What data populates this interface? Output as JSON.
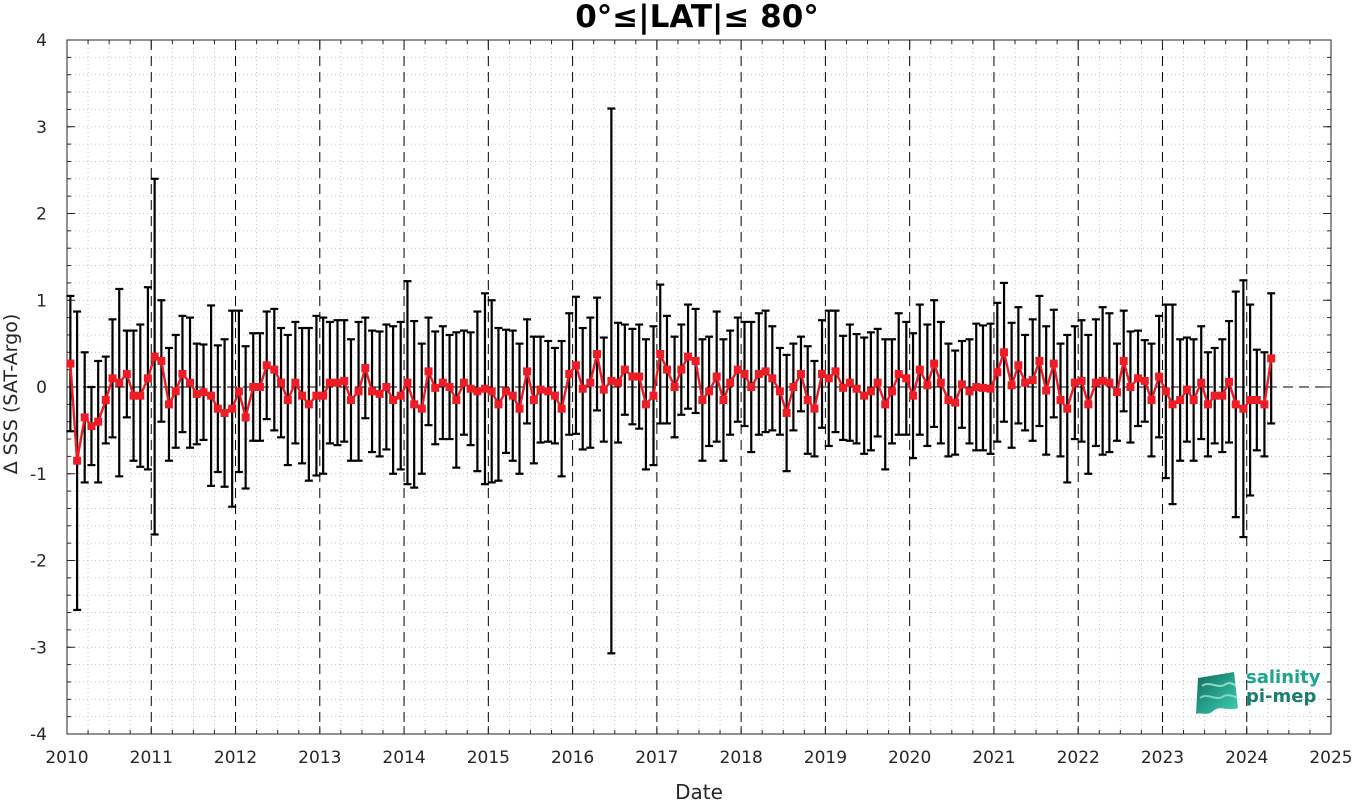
{
  "chart_data": {
    "type": "line",
    "title": "0°≤|LAT|≤ 80°",
    "xlabel": "Date",
    "ylabel": "Δ SSS (SAT-Argo)",
    "xlim": [
      2010,
      2025
    ],
    "ylim": [
      -4,
      4
    ],
    "x_ticks": [
      "2010",
      "2011",
      "2012",
      "2013",
      "2014",
      "2015",
      "2016",
      "2017",
      "2018",
      "2019",
      "2020",
      "2021",
      "2022",
      "2023",
      "2024",
      "2025"
    ],
    "y_ticks": [
      "4",
      "3",
      "2",
      "1",
      "0",
      "-1",
      "-2",
      "-3",
      "-4"
    ],
    "grid": "dotted, with dashed vertical lines at each year",
    "reference_line": 0,
    "series": [
      {
        "color": "#ee1c25",
        "marker": "square",
        "errorbar_color": "#000000",
        "x": [
          2010.04,
          2010.12,
          2010.21,
          2010.29,
          2010.37,
          2010.46,
          2010.54,
          2010.62,
          2010.71,
          2010.79,
          2010.87,
          2010.96,
          2011.04,
          2011.12,
          2011.21,
          2011.29,
          2011.37,
          2011.46,
          2011.54,
          2011.62,
          2011.71,
          2011.79,
          2011.87,
          2011.96,
          2012.04,
          2012.12,
          2012.21,
          2012.29,
          2012.37,
          2012.46,
          2012.54,
          2012.62,
          2012.71,
          2012.79,
          2012.87,
          2012.96,
          2013.04,
          2013.12,
          2013.21,
          2013.29,
          2013.37,
          2013.46,
          2013.54,
          2013.62,
          2013.71,
          2013.79,
          2013.87,
          2013.96,
          2014.04,
          2014.12,
          2014.21,
          2014.29,
          2014.37,
          2014.46,
          2014.54,
          2014.62,
          2014.71,
          2014.79,
          2014.87,
          2014.96,
          2015.04,
          2015.12,
          2015.21,
          2015.29,
          2015.37,
          2015.46,
          2015.54,
          2015.62,
          2015.71,
          2015.79,
          2015.87,
          2015.96,
          2016.04,
          2016.12,
          2016.21,
          2016.29,
          2016.37,
          2016.46,
          2016.54,
          2016.62,
          2016.71,
          2016.79,
          2016.87,
          2016.96,
          2017.04,
          2017.12,
          2017.21,
          2017.29,
          2017.37,
          2017.46,
          2017.54,
          2017.62,
          2017.71,
          2017.79,
          2017.87,
          2017.96,
          2018.04,
          2018.12,
          2018.21,
          2018.29,
          2018.37,
          2018.46,
          2018.54,
          2018.62,
          2018.71,
          2018.79,
          2018.87,
          2018.96,
          2019.04,
          2019.12,
          2019.21,
          2019.29,
          2019.37,
          2019.46,
          2019.54,
          2019.62,
          2019.71,
          2019.79,
          2019.87,
          2019.96,
          2020.04,
          2020.12,
          2020.21,
          2020.29,
          2020.37,
          2020.46,
          2020.54,
          2020.62,
          2020.71,
          2020.79,
          2020.87,
          2020.96,
          2021.04,
          2021.12,
          2021.21,
          2021.29,
          2021.37,
          2021.46,
          2021.54,
          2021.62,
          2021.71,
          2021.79,
          2021.87,
          2021.96,
          2022.04,
          2022.12,
          2022.21,
          2022.29,
          2022.37,
          2022.46,
          2022.54,
          2022.62,
          2022.71,
          2022.79,
          2022.87,
          2022.96,
          2023.04,
          2023.12,
          2023.21,
          2023.29,
          2023.37,
          2023.46,
          2023.54,
          2023.62,
          2023.71,
          2023.79,
          2023.87,
          2023.96,
          2024.04,
          2024.12,
          2024.21,
          2024.29
        ],
        "y": [
          0.27,
          -0.85,
          -0.35,
          -0.45,
          -0.4,
          -0.15,
          0.1,
          0.05,
          0.15,
          -0.1,
          -0.1,
          0.1,
          0.35,
          0.3,
          -0.2,
          -0.05,
          0.15,
          0.05,
          -0.08,
          -0.06,
          -0.1,
          -0.25,
          -0.3,
          -0.25,
          -0.05,
          -0.35,
          0.0,
          0.0,
          0.25,
          0.2,
          0.05,
          -0.15,
          0.05,
          -0.1,
          -0.2,
          -0.1,
          -0.1,
          0.05,
          0.05,
          0.07,
          -0.15,
          -0.05,
          0.22,
          -0.05,
          -0.08,
          0.0,
          -0.15,
          -0.1,
          0.05,
          -0.2,
          -0.25,
          0.18,
          -0.01,
          0.05,
          0.0,
          -0.15,
          0.05,
          -0.02,
          -0.05,
          -0.02,
          -0.05,
          -0.2,
          -0.05,
          -0.1,
          -0.25,
          0.18,
          -0.15,
          -0.03,
          -0.05,
          -0.1,
          -0.25,
          0.15,
          0.25,
          -0.02,
          0.05,
          0.38,
          -0.03,
          0.07,
          0.05,
          0.2,
          0.12,
          0.12,
          -0.2,
          -0.1,
          0.38,
          0.2,
          0.0,
          0.2,
          0.35,
          0.3,
          -0.15,
          -0.05,
          0.12,
          -0.15,
          0.05,
          0.2,
          0.15,
          0.0,
          0.15,
          0.18,
          0.1,
          -0.05,
          -0.3,
          0.0,
          0.15,
          -0.15,
          -0.25,
          0.15,
          0.1,
          0.18,
          -0.01,
          0.05,
          -0.02,
          -0.1,
          -0.05,
          0.05,
          -0.2,
          -0.05,
          0.15,
          0.1,
          -0.1,
          0.2,
          0.02,
          0.27,
          0.05,
          -0.15,
          -0.18,
          0.03,
          -0.05,
          0.0,
          -0.01,
          -0.02,
          0.17,
          0.4,
          0.02,
          0.25,
          0.05,
          0.08,
          0.3,
          -0.04,
          0.27,
          -0.15,
          -0.25,
          0.05,
          0.07,
          -0.2,
          0.05,
          0.07,
          0.05,
          -0.06,
          0.3,
          0.0,
          0.1,
          0.07,
          -0.15,
          0.12,
          -0.05,
          -0.2,
          -0.15,
          -0.03,
          -0.15,
          0.05,
          -0.2,
          -0.1,
          -0.1,
          0.06,
          -0.2,
          -0.25,
          -0.15,
          -0.15,
          -0.2,
          0.33
        ],
        "y_error": [
          0.78,
          1.72,
          0.75,
          0.45,
          0.7,
          0.5,
          0.68,
          1.08,
          0.5,
          0.75,
          0.82,
          1.05,
          2.05,
          0.7,
          0.65,
          0.65,
          0.67,
          0.75,
          0.58,
          0.55,
          1.04,
          0.73,
          0.85,
          1.13,
          0.93,
          0.82,
          0.62,
          0.62,
          0.62,
          0.7,
          0.63,
          0.75,
          0.7,
          0.78,
          0.88,
          0.92,
          0.9,
          0.7,
          0.72,
          0.7,
          0.7,
          0.8,
          0.58,
          0.7,
          0.72,
          0.72,
          0.85,
          0.85,
          1.17,
          0.96,
          0.75,
          0.62,
          0.65,
          0.65,
          0.6,
          0.78,
          0.6,
          0.65,
          0.92,
          1.1,
          1.05,
          0.88,
          0.71,
          0.75,
          0.75,
          0.6,
          0.73,
          0.61,
          0.58,
          0.55,
          0.78,
          0.7,
          0.79,
          0.7,
          0.75,
          0.65,
          0.6,
          3.14,
          0.69,
          0.52,
          0.55,
          0.6,
          0.75,
          0.8,
          0.8,
          0.62,
          0.58,
          0.52,
          0.6,
          0.6,
          0.7,
          0.63,
          0.75,
          0.7,
          0.6,
          0.6,
          0.6,
          0.75,
          0.7,
          0.7,
          0.6,
          0.5,
          0.67,
          0.5,
          0.43,
          0.62,
          0.55,
          0.62,
          0.78,
          0.7,
          0.6,
          0.67,
          0.63,
          0.67,
          0.68,
          0.62,
          0.75,
          0.6,
          0.7,
          0.65,
          0.72,
          0.75,
          0.7,
          0.73,
          0.7,
          0.65,
          0.6,
          0.5,
          0.6,
          0.73,
          0.72,
          0.75,
          0.8,
          0.8,
          0.72,
          0.67,
          0.55,
          0.7,
          0.75,
          0.74,
          0.62,
          0.65,
          0.85,
          0.65,
          0.7,
          0.8,
          0.73,
          0.85,
          0.8,
          0.56,
          0.58,
          0.64,
          0.55,
          0.47,
          0.65,
          0.7,
          1.0,
          1.15,
          0.7,
          0.6,
          0.7,
          0.65,
          0.6,
          0.55,
          0.65,
          0.7,
          1.3,
          1.48,
          1.1,
          0.58,
          0.6,
          0.75
        ],
        "zero_line_extends_to": 2025
      }
    ]
  },
  "logo": {
    "line1": "salinity",
    "line2": "pi-mep"
  }
}
